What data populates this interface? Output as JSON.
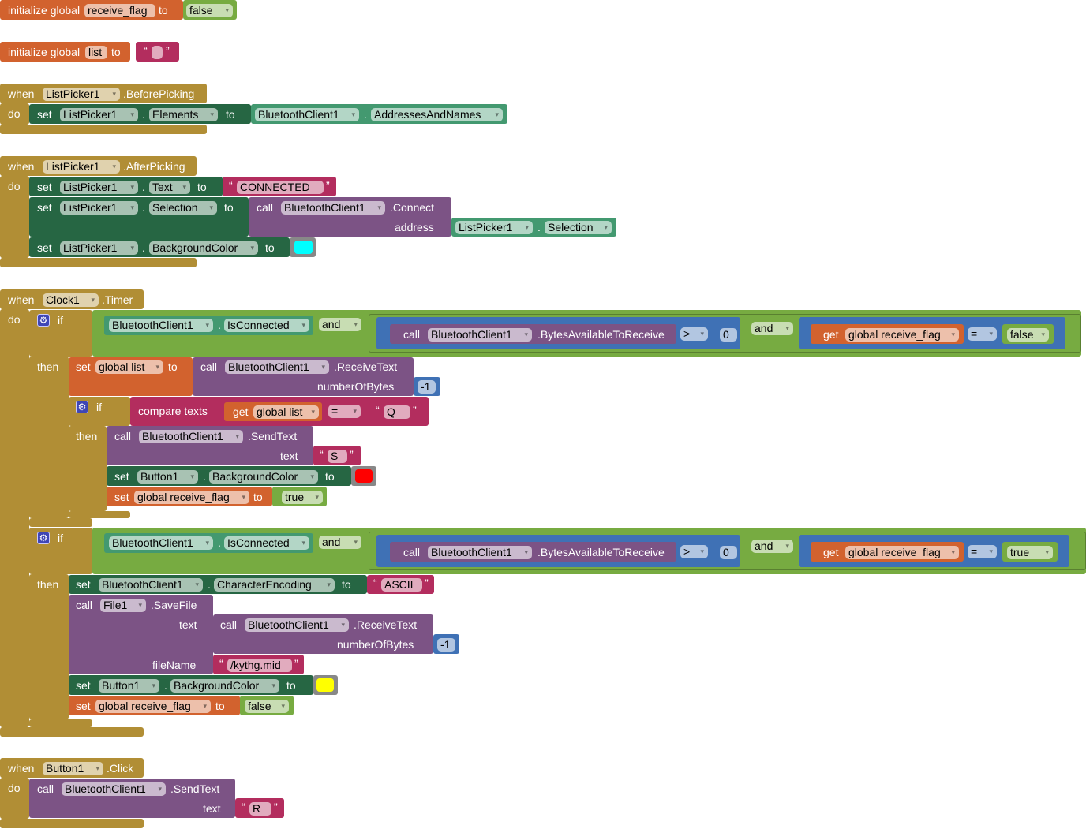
{
  "glyphs": {
    "dot": ".",
    "qo": "“",
    "qc": "”",
    "dd": "▾",
    "gear": "⚙"
  },
  "kw": {
    "init": "initialize global",
    "to": "to",
    "when": "when",
    "do": "do",
    "set": "set",
    "call": "call",
    "if": "if",
    "then": "then",
    "get": "get"
  },
  "colors": {
    "event": "#B18E35",
    "variable": "#D2622E",
    "setter": "#266643",
    "getter": "#439970",
    "logic": "#77AB41",
    "procedure": "#7C5385",
    "text": "#B32D5E",
    "math": "#3F71B5"
  },
  "g1": {
    "name": "receive_flag",
    "value": "false"
  },
  "g2": {
    "name": "list",
    "value": ""
  },
  "e1": {
    "component": "ListPicker1",
    "event": ".BeforePicking",
    "set_component": "ListPicker1",
    "set_prop": "Elements",
    "get_component": "BluetoothClient1",
    "get_prop": "AddressesAndNames"
  },
  "e2": {
    "component": "ListPicker1",
    "event": ".AfterPicking",
    "s1": {
      "component": "ListPicker1",
      "prop": "Text",
      "value": "CONNECTED"
    },
    "s2": {
      "component": "ListPicker1",
      "prop": "Selection",
      "call_component": "BluetoothClient1",
      "method": ".Connect",
      "arg": "address",
      "arg_component": "ListPicker1",
      "arg_prop": "Selection"
    },
    "s3": {
      "component": "ListPicker1",
      "prop": "BackgroundColor",
      "color": "#00FFFF"
    }
  },
  "e3": {
    "component": "Clock1",
    "event": ".Timer",
    "if1": {
      "component": "BluetoothClient1",
      "prop": "IsConnected",
      "op": "and",
      "call_component": "BluetoothClient1",
      "method": ".BytesAvailableToReceive",
      "cmp": ">",
      "num": "0",
      "op2": "and",
      "var": "global receive_flag",
      "eq": "=",
      "bool": "false",
      "set_var": "global list",
      "recv_component": "BluetoothClient1",
      "recv_method": ".ReceiveText",
      "recv_arg": "numberOfBytes",
      "recv_num": "-1",
      "if2": {
        "compare": "compare texts",
        "var": "global list",
        "eq": "=",
        "text": "Q",
        "send_component": "BluetoothClient1",
        "send_method": ".SendText",
        "send_arg": "text",
        "send_value": "S",
        "btn": "Button1",
        "btn_prop": "BackgroundColor",
        "btn_color": "#FF0000",
        "flag_var": "global receive_flag",
        "flag_value": "true"
      }
    },
    "if3": {
      "component": "BluetoothClient1",
      "prop": "IsConnected",
      "op": "and",
      "call_component": "BluetoothClient1",
      "method": ".BytesAvailableToReceive",
      "cmp": ">",
      "num": "0",
      "op2": "and",
      "var": "global receive_flag",
      "eq": "=",
      "bool": "true",
      "enc_component": "BluetoothClient1",
      "enc_prop": "CharacterEncoding",
      "enc_value": "ASCII",
      "file": "File1",
      "file_method": ".SaveFile",
      "file_arg1": "text",
      "file_arg2": "fileName",
      "recv_component": "BluetoothClient1",
      "recv_method": ".ReceiveText",
      "recv_arg": "numberOfBytes",
      "recv_num": "-1",
      "filename": "/kythg.mid",
      "btn": "Button1",
      "btn_prop": "BackgroundColor",
      "btn_color": "#FFFF00",
      "flag_var": "global receive_flag",
      "flag_value": "false"
    }
  },
  "e4": {
    "component": "Button1",
    "event": ".Click",
    "call_component": "BluetoothClient1",
    "method": ".SendText",
    "arg": "text",
    "value": "R"
  }
}
